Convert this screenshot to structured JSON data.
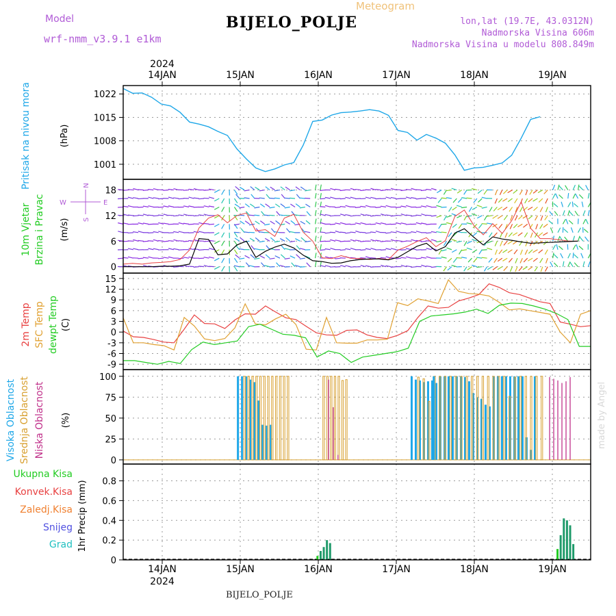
{
  "header": {
    "model_label": "Model",
    "model_name": "wrf-nmm_v3.9.1  e1km",
    "title": "BIJELO_POLJE",
    "meteogram": "Meteogram",
    "location_line1": "lon,lat (19.7E, 43.0312N)",
    "location_line2": "Nadmorska Visina 606m",
    "location_line3": "Nadmorska Visina u modelu 808.849m",
    "footer": "BIJELO_POLJE",
    "made_by": "made by Angel"
  },
  "colors": {
    "pressure": "#1ea7e8",
    "wind_label": "#22cc22",
    "temp_2m": "#e84040",
    "sfc_temp": "#e0a030",
    "dewpt": "#22cc22",
    "cloud_high": "#1ea7e8",
    "cloud_mid": "#d8a030",
    "cloud_low": "#c0308a",
    "precip_total": "#22cc22",
    "precip_conv": "#e84040",
    "precip_strat": "#f08030",
    "precip_snow": "#5050e0",
    "precip_hail": "#20c0c0",
    "wind_gust": "#e84040",
    "wind_speed": "#000000",
    "compass": "#b05ad6"
  },
  "chart_data": [
    {
      "type": "line",
      "panel": "pressure",
      "ylabel_lines": [
        "Pritisak na nivou mora",
        "(hPa)"
      ],
      "year_label": "2024",
      "x_day_labels": [
        "14JAN",
        "15JAN",
        "16JAN",
        "17JAN",
        "18JAN",
        "19JAN"
      ],
      "yticks": [
        1001,
        1008,
        1015,
        1022
      ],
      "ylim": [
        996.5,
        1024.5
      ],
      "x_hours": [
        0,
        3,
        6,
        9,
        12,
        15,
        18,
        21,
        24,
        27,
        30,
        33,
        36,
        39,
        42,
        45,
        48,
        51,
        54,
        57,
        60,
        63,
        66,
        69,
        72,
        75,
        78,
        81,
        84,
        87,
        90,
        93,
        96,
        99,
        102,
        105,
        108,
        111,
        114,
        117,
        120,
        123,
        126,
        129,
        132,
        135,
        138,
        141,
        144
      ],
      "series": [
        {
          "values": [
            1023.6,
            1022.2,
            1022.3,
            1021.0,
            1019.0,
            1018.4,
            1016.5,
            1013.6,
            1013.0,
            1012.2,
            1010.8,
            1009.6,
            1005.6,
            1002.6,
            999.9,
            998.8,
            999.6,
            1000.8,
            1001.5,
            1006.7,
            1013.8,
            1014.2,
            1015.7,
            1016.4,
            1016.6,
            1016.9,
            1017.3,
            1016.9,
            1015.6,
            1011.1,
            1010.5,
            1008.2,
            1009.9,
            1008.8,
            1007.3,
            1003.8,
            999.2,
            999.9,
            1000.1,
            1000.7,
            1001.4,
            1003.7,
            1008.8,
            1014.4,
            1015.2
          ]
        }
      ]
    },
    {
      "type": "line",
      "panel": "wind",
      "ylabel_lines": [
        "10m Vjetar",
        "Brzina i Pravac",
        "(m/s)"
      ],
      "compass": {
        "n": "N",
        "s": "S",
        "w": "W",
        "e": "E"
      },
      "yticks": [
        0,
        6,
        12,
        18
      ],
      "ylim": [
        -1.5,
        20.5
      ],
      "series": [
        {
          "name": "gust",
          "values": [
            0.6,
            0.8,
            0.6,
            0.9,
            1.0,
            1.2,
            1.7,
            3.9,
            9.1,
            11.4,
            12.2,
            10.3,
            12.0,
            12.6,
            8.4,
            8.7,
            7.1,
            11.4,
            12.3,
            8.1,
            6.0,
            2.1,
            1.9,
            2.6,
            2.0,
            1.9,
            1.7,
            1.9,
            1.7,
            3.9,
            4.8,
            5.9,
            6.8,
            4.7,
            6.1,
            11.8,
            13.3,
            9.7,
            7.5,
            10.1,
            7.8,
            10.8,
            15.2,
            9.0,
            6.6,
            6.6,
            6.3,
            6.0,
            6.0
          ]
        },
        {
          "name": "speed",
          "values": [
            0.0,
            0.0,
            0.0,
            0.0,
            0.1,
            0.1,
            0.2,
            0.6,
            6.6,
            6.4,
            2.8,
            3.0,
            5.1,
            6.0,
            2.2,
            3.6,
            4.6,
            5.3,
            4.4,
            2.7,
            1.4,
            1.2,
            0.8,
            0.9,
            1.4,
            1.7,
            1.8,
            1.8,
            1.6,
            2.2,
            3.5,
            4.8,
            5.5,
            3.7,
            4.7,
            7.9,
            8.9,
            6.9,
            5.1,
            7.0,
            6.5,
            6.2,
            5.8,
            5.5,
            5.6,
            5.7,
            5.8,
            5.9,
            6.0
          ]
        }
      ]
    },
    {
      "type": "line",
      "panel": "temperature",
      "ylabel_lines": [
        "2m Temp",
        "SFC Temp",
        "dewpt Temp",
        "(C)"
      ],
      "yticks": [
        -9,
        -6,
        -3,
        0,
        3,
        6,
        9,
        12,
        15
      ],
      "ylim": [
        -10.5,
        16.5
      ],
      "series": [
        {
          "name": "2m",
          "values": [
            0.3,
            -1.3,
            -1.5,
            -2.1,
            -2.8,
            -3.0,
            0.8,
            4.8,
            2.4,
            2.3,
            1.0,
            3.4,
            5.1,
            5.0,
            7.3,
            5.6,
            4.0,
            3.5,
            1.6,
            -0.2,
            -0.8,
            -0.9,
            0.5,
            0.6,
            -0.8,
            -1.5,
            -1.8,
            -0.9,
            0.4,
            4.1,
            7.3,
            6.7,
            6.9,
            8.7,
            9.5,
            10.5,
            13.5,
            12.5,
            11.0,
            10.5,
            9.5,
            8.5,
            8.0,
            2.8,
            2.2,
            1.5,
            1.8
          ]
        },
        {
          "name": "sfc",
          "values": [
            4.0,
            -3.0,
            -3.0,
            -3.5,
            -3.8,
            -5.0,
            4.1,
            1.7,
            -1.9,
            -2.4,
            -1.8,
            1.2,
            7.9,
            2.3,
            2.0,
            3.7,
            5.0,
            2.1,
            -4.8,
            -5.0,
            4.1,
            -3.0,
            -3.1,
            -3.1,
            -2.2,
            -2.2,
            -2.0,
            8.2,
            7.4,
            9.3,
            8.7,
            8.0,
            14.6,
            11.4,
            10.8,
            10.6,
            10.1,
            8.3,
            6.2,
            6.5,
            6.0,
            5.5,
            5.0,
            0.0,
            -3.0,
            5.0,
            6.0
          ]
        },
        {
          "name": "dewpt",
          "values": [
            -8.0,
            -8.0,
            -8.5,
            -9.0,
            -8.2,
            -8.8,
            -4.9,
            -2.8,
            -3.5,
            -3.0,
            -2.5,
            1.5,
            2.2,
            0.8,
            -0.6,
            -0.9,
            -1.6,
            -7.0,
            -5.3,
            -6.0,
            -8.5,
            -7.0,
            -6.5,
            -6.0,
            -5.5,
            -4.5,
            3.0,
            4.5,
            4.8,
            5.1,
            5.6,
            6.4,
            5.2,
            7.5,
            8.1,
            8.0,
            7.3,
            6.4,
            5.2,
            3.5,
            -4.0,
            -4.0
          ]
        }
      ]
    },
    {
      "type": "bar",
      "panel": "clouds",
      "ylabel_lines": [
        "Visoka Oblacnost",
        "Srednja Oblacnost",
        "Niska Oblacnost",
        "(%)"
      ],
      "yticks": [
        0,
        25,
        50,
        75,
        100
      ],
      "ylim": [
        -5,
        108
      ],
      "series": [
        {
          "name": "high",
          "values": [
            100,
            100,
            100,
            96,
            93,
            71,
            42,
            41,
            42,
            100,
            96,
            95,
            93,
            94,
            95,
            92,
            100,
            100,
            100,
            100,
            100,
            100,
            99,
            94,
            80,
            75,
            73,
            66,
            64,
            100,
            100,
            100,
            100,
            100,
            100,
            100,
            100,
            27,
            12,
            100
          ]
        },
        {
          "name": "mid",
          "values": [
            100,
            100,
            100,
            100,
            100,
            100,
            100,
            100,
            100,
            100,
            100,
            100,
            100,
            100,
            100,
            100,
            100,
            95,
            96,
            99,
            97,
            70,
            100,
            100,
            100,
            100,
            100,
            100,
            100,
            100,
            100,
            100,
            100,
            100,
            100,
            100,
            76,
            99,
            100,
            100,
            100,
            100,
            100
          ]
        },
        {
          "name": "low",
          "values": [
            96,
            63,
            6,
            99,
            97,
            95,
            92,
            94,
            99
          ]
        }
      ]
    },
    {
      "type": "bar",
      "panel": "precipitation",
      "legend": [
        "Ukupna  Kisa",
        "Konvek.Kisa",
        "Zaledj.Kisa",
        "Snijeg",
        "Grad"
      ],
      "ylabel_lines": [
        "1hr Precip (mm)"
      ],
      "yticks": [
        0,
        0.2,
        0.4,
        0.6,
        0.8
      ],
      "ylim": [
        0,
        0.97
      ],
      "series": [
        {
          "name": "total",
          "values": [
            0.04,
            0.09,
            0.13,
            0.2,
            0.17,
            0.11,
            0.25,
            0.42,
            0.4,
            0.35,
            0.16
          ]
        }
      ]
    }
  ]
}
